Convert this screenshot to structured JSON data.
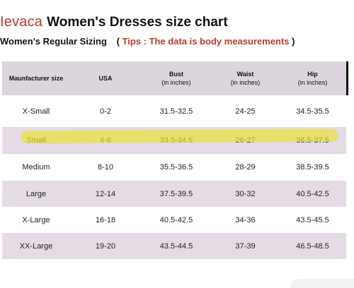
{
  "header": {
    "brand": "Ievaca",
    "title": "Women's Dresses size chart"
  },
  "subtitle": {
    "label": "Women's Regular Sizing",
    "tips_open": "(",
    "tips": "Tips : The data is body measurements",
    "tips_close": ")"
  },
  "table": {
    "columns": [
      {
        "label": "Maunfacturer size",
        "sub": ""
      },
      {
        "label": "USA",
        "sub": ""
      },
      {
        "label": "Bust",
        "sub": "(in inches)"
      },
      {
        "label": "Waist",
        "sub": "(in inches)"
      },
      {
        "label": "Hip",
        "sub": "(in inches)"
      }
    ],
    "rows": [
      [
        "X-Small",
        "0-2",
        "31.5-32.5",
        "24-25",
        "34.5-35.5"
      ],
      [
        "Small",
        "4-6",
        "33.5-34.5",
        "26-27",
        "36.5-37.5"
      ],
      [
        "Medium",
        "8-10",
        "35.5-36.5",
        "28-29",
        "38.5-39.5"
      ],
      [
        "Large",
        "12-14",
        "37.5-39.5",
        "30-32",
        "40.5-42.5"
      ],
      [
        "X-Large",
        "16-18",
        "40.5-42.5",
        "34-36",
        "43.5-45.5"
      ],
      [
        "XX-Large",
        "19-20",
        "43.5-44.5",
        "37-39",
        "46.5-48.5"
      ]
    ],
    "highlighted_row": "Small",
    "highlight_color": "#e8e23c",
    "stripe_color": "#e4dbe4",
    "header_color": "#ddd5dd"
  },
  "colors": {
    "brand": "#c0392b",
    "tips": "#c0392b"
  }
}
